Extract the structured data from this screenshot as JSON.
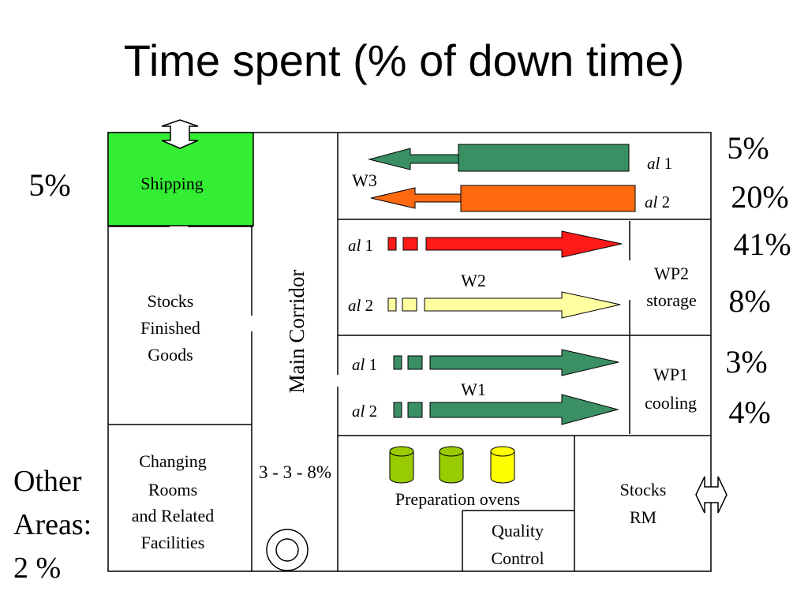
{
  "title": "Time spent (% of down time)",
  "colors": {
    "shipping": "#33ee33",
    "dark_green_arrow": "#3a8f63",
    "orange_arrow": "#ff6a10",
    "red_arrow": "#ff1a1a",
    "light_yellow_arrow": "#ffffa0",
    "oven_green": "#99cc00",
    "oven_yellow": "#ffff00",
    "walls": "#000000"
  },
  "areas": {
    "shipping": "Shipping",
    "stocks_fg": [
      "Stocks",
      "Finished",
      "Goods"
    ],
    "main_corridor": "Main Corridor",
    "changing": [
      "Changing",
      "Rooms",
      "and Related",
      "Facilities"
    ],
    "stocks_rm": [
      "Stocks",
      "RM"
    ],
    "quality": [
      "Quality",
      "Control"
    ],
    "ovens": "Preparation ovens",
    "wp2": [
      "WP2",
      "storage"
    ],
    "wp1": [
      "WP1",
      "cooling"
    ]
  },
  "workstations": {
    "w3": "W3",
    "w2": "W2",
    "w1": "W1"
  },
  "lines": {
    "al": "al",
    "n1": "1",
    "n2": "2"
  },
  "percentages": {
    "shipping": "5%",
    "w3_l1": "5%",
    "w3_l2": "20%",
    "w2_l1": "41%",
    "w2_l2": "8%",
    "w1_l1": "3%",
    "w1_l2": "4%",
    "corridor": "3 - 3 - 8%",
    "other": [
      "Other",
      "Areas:",
      "2 %"
    ]
  },
  "icons": {
    "shipping_exit": "double-arrow-vertical-icon",
    "rm_entry": "double-arrow-horizontal-icon",
    "drain": "concentric-circle-icon"
  }
}
